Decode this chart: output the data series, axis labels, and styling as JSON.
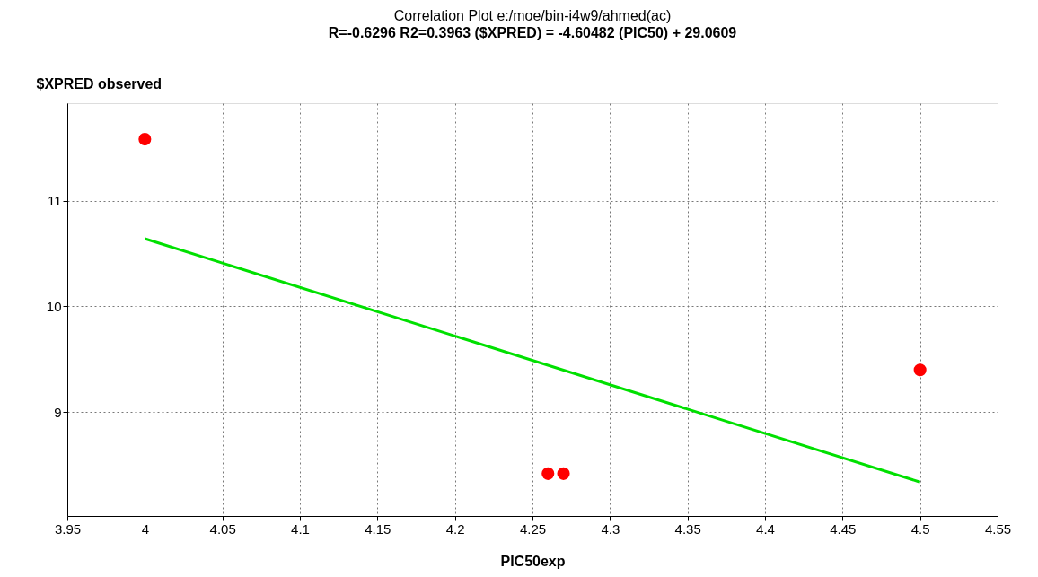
{
  "chart_data": {
    "type": "scatter",
    "title": "Correlation Plot e:/moe/bin-i4w9/ahmed(ac)",
    "subtitle": "R=-0.6296 R2=0.3963    ($XPRED) = -4.60482 (PIC50) + 29.0609",
    "xlabel": "PIC50exp",
    "ylabel": "$XPRED observed",
    "series": [
      {
        "color": "#ff0000",
        "x": [
          4,
          4.26,
          4.27,
          4.5
        ],
        "values": [
          11.58,
          8.42,
          8.42,
          9.4
        ],
        "marker": "circle"
      },
      {
        "type": "line",
        "color": "#00e000",
        "x": [
          4,
          4.5
        ],
        "values": [
          10.64,
          8.34
        ],
        "marker": "none"
      }
    ],
    "xlim": [
      3.95,
      4.55
    ],
    "xticks": [
      3.95,
      4,
      4.05,
      4.1,
      4.15,
      4.2,
      4.25,
      4.3,
      4.35,
      4.4,
      4.45,
      4.5,
      4.55
    ],
    "ylim": [
      8.02,
      11.92
    ],
    "yticks": [
      9,
      10,
      11
    ],
    "grid": true
  }
}
